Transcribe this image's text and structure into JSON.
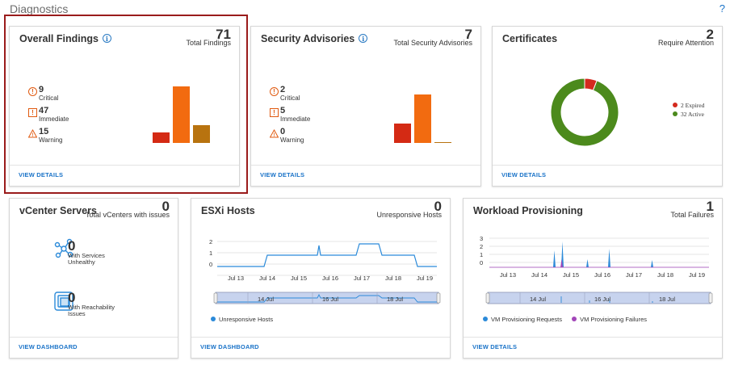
{
  "page": {
    "title": "Diagnostics",
    "help": "?"
  },
  "overall": {
    "title": "Overall Findings",
    "total": "71",
    "total_label": "Total Findings",
    "critical_num": "9",
    "critical_label": "Critical",
    "immediate_num": "47",
    "immediate_label": "Immediate",
    "warning_num": "15",
    "warning_label": "Warning",
    "bar_values": [
      9,
      47,
      15
    ],
    "link": "VIEW DETAILS"
  },
  "security": {
    "title": "Security Advisories",
    "total": "7",
    "total_label": "Total Security Advisories",
    "critical_num": "2",
    "critical_label": "Critical",
    "immediate_num": "5",
    "immediate_label": "Immediate",
    "warning_num": "0",
    "warning_label": "Warning",
    "bar_values": [
      2,
      5,
      0
    ],
    "link": "VIEW DETAILS"
  },
  "certificates": {
    "title": "Certificates",
    "total": "2",
    "total_label": "Require Attention",
    "expired_label": "2 Expired",
    "active_label": "32 Active",
    "expired": 2,
    "active": 32,
    "colors": {
      "expired": "#d42a1e",
      "active": "#4c8a1c"
    },
    "link": "VIEW DETAILS"
  },
  "vcenter": {
    "title": "vCenter Servers",
    "total": "0",
    "total_label": "Total vCenters with issues",
    "services_num": "0",
    "services_label_1": "With Services",
    "services_label_2": "Unhealthy",
    "reach_num": "0",
    "reach_label_1": "With Reachability",
    "reach_label_2": "Issues",
    "link": "VIEW DASHBOARD"
  },
  "esxi": {
    "title": "ESXi Hosts",
    "total": "0",
    "total_label": "Unresponsive Hosts",
    "y_ticks": [
      "2",
      "1",
      "0"
    ],
    "x_ticks": [
      "Jul 13",
      "Jul 14",
      "Jul 15",
      "Jul 16",
      "Jul 17",
      "Jul 18",
      "Jul 19"
    ],
    "nav_ticks": [
      "14 Jul",
      "16 Jul",
      "18 Jul"
    ],
    "legend": "Unresponsive Hosts",
    "link": "VIEW DASHBOARD"
  },
  "workload": {
    "title": "Workload Provisioning",
    "total": "1",
    "total_label": "Total Failures",
    "y_ticks": [
      "3",
      "2",
      "1",
      "0"
    ],
    "x_ticks": [
      "Jul 13",
      "Jul 14",
      "Jul 15",
      "Jul 16",
      "Jul 17",
      "Jul 18",
      "Jul 19"
    ],
    "nav_ticks": [
      "14 Jul",
      "16 Jul",
      "18 Jul"
    ],
    "legend_requests": "VM Provisioning Requests",
    "legend_failures": "VM Provisioning Failures",
    "link": "VIEW DETAILS"
  },
  "colors": {
    "critical": "#d42a14",
    "immediate": "#f26b10",
    "warning": "#b8730f",
    "chart_line": "#2b8ad9",
    "failures": "#a246b9",
    "selection_border": "#9a1b1b"
  }
}
